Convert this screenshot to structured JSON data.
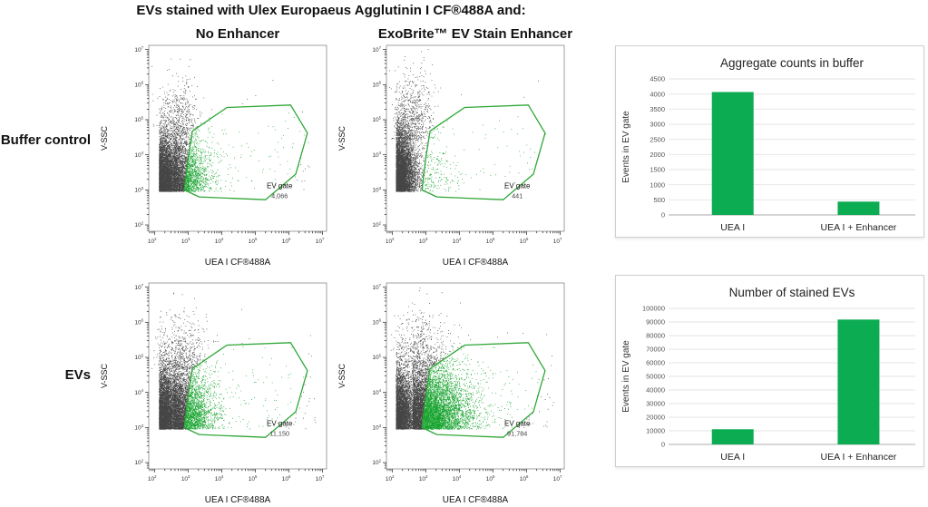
{
  "header": {
    "title": "EVs stained with Ulex Europaeus Agglutinin I CF®488A and:",
    "columns": [
      "No Enhancer",
      "ExoBrite™ EV Stain Enhancer"
    ]
  },
  "row_labels": [
    "Buffer control",
    "EVs"
  ],
  "colors": {
    "scatter_gray": "#454545",
    "scatter_green": "#17a42e",
    "gate_green": "#2fa737",
    "bar_green": "#0cac53",
    "grid_gray": "#e3e3e3",
    "axis_line": "#adadad",
    "panel_border": "#cfcfcf",
    "tick_text": "#555555",
    "label_text": "#222222"
  },
  "flow": {
    "x_label": "UEA I CF®488A",
    "y_label": "V-SSC",
    "tick_exponents": [
      2,
      3,
      4,
      5,
      6,
      7
    ],
    "gate": {
      "label": "EV gate",
      "polygon_log10": [
        [
          2.88,
          3.0
        ],
        [
          3.0,
          3.95
        ],
        [
          3.12,
          4.68
        ],
        [
          4.15,
          5.35
        ],
        [
          6.05,
          5.42
        ],
        [
          6.55,
          4.62
        ],
        [
          6.2,
          3.45
        ],
        [
          5.3,
          2.72
        ],
        [
          3.32,
          2.8
        ]
      ]
    },
    "plots": [
      {
        "id": "buffer-no-enhancer",
        "row": "Buffer control",
        "column": "No Enhancer",
        "gate_count": "4,066",
        "seed": 11,
        "clouds": [
          {
            "n": 5200,
            "x": [
              "half",
              2.12,
              0.3
            ],
            "y": [
              "half",
              2.95,
              0.75
            ]
          },
          {
            "n": 2400,
            "x": [
              "half",
              2.55,
              0.5
            ],
            "y": [
              "half",
              2.95,
              0.8
            ]
          },
          {
            "n": 430,
            "x": [
              "gauss",
              2.7,
              0.3
            ],
            "y": [
              "half",
              4.55,
              0.8
            ]
          },
          {
            "n": 150,
            "x": [
              "uni",
              2.2,
              4.4
            ],
            "y": [
              "half",
              2.95,
              1.3
            ]
          }
        ]
      },
      {
        "id": "buffer-enhancer",
        "row": "Buffer control",
        "column": "ExoBrite™ EV Stain Enhancer",
        "gate_count": "441",
        "seed": 22,
        "clouds": [
          {
            "n": 5600,
            "x": [
              "half",
              2.1,
              0.27
            ],
            "y": [
              "half",
              2.95,
              0.85
            ]
          },
          {
            "n": 270,
            "x": [
              "half",
              2.6,
              0.55
            ],
            "y": [
              "half",
              2.95,
              0.7
            ]
          },
          {
            "n": 650,
            "x": [
              "gauss",
              2.65,
              0.33
            ],
            "y": [
              "half",
              4.45,
              0.95
            ]
          },
          {
            "n": 100,
            "x": [
              "uni",
              2.2,
              4.4
            ],
            "y": [
              "half",
              2.95,
              1.25
            ]
          }
        ]
      },
      {
        "id": "evs-no-enhancer",
        "row": "EVs",
        "column": "No Enhancer",
        "gate_count": "11,150",
        "seed": 33,
        "clouds": [
          {
            "n": 5200,
            "x": [
              "half",
              2.12,
              0.3
            ],
            "y": [
              "half",
              2.95,
              0.8
            ]
          },
          {
            "n": 3600,
            "x": [
              "half",
              2.55,
              0.55
            ],
            "y": [
              "half",
              2.95,
              0.85
            ]
          },
          {
            "n": 470,
            "x": [
              "gauss",
              2.75,
              0.35
            ],
            "y": [
              "half",
              4.65,
              0.8
            ]
          },
          {
            "n": 170,
            "x": [
              "uni",
              2.2,
              4.6
            ],
            "y": [
              "half",
              2.95,
              1.25
            ]
          }
        ]
      },
      {
        "id": "evs-enhancer",
        "row": "EVs",
        "column": "ExoBrite™ EV Stain Enhancer",
        "gate_count": "91,784",
        "seed": 44,
        "clouds": [
          {
            "n": 4600,
            "x": [
              "half",
              2.1,
              0.28
            ],
            "y": [
              "half",
              2.95,
              0.8
            ]
          },
          {
            "n": 7200,
            "x": [
              "half",
              2.6,
              0.8
            ],
            "y": [
              "half",
              2.95,
              0.85
            ]
          },
          {
            "n": 400,
            "x": [
              "gauss",
              2.8,
              0.4
            ],
            "y": [
              "half",
              4.75,
              0.75
            ]
          },
          {
            "n": 180,
            "x": [
              "uni",
              2.2,
              4.6
            ],
            "y": [
              "half",
              2.95,
              1.2
            ]
          }
        ]
      }
    ]
  },
  "chart_data": [
    {
      "type": "scatter",
      "subtype": "flow-cytometry-dot-plot",
      "title": "Buffer control — No Enhancer",
      "xlabel": "UEA I CF®488A",
      "ylabel": "V-SSC",
      "xscale": "log",
      "yscale": "log",
      "xlim": [
        100,
        10000000
      ],
      "ylim": [
        100,
        10000000
      ],
      "gate_label": "EV gate",
      "events_in_gate": 4066
    },
    {
      "type": "scatter",
      "subtype": "flow-cytometry-dot-plot",
      "title": "Buffer control — ExoBrite™ EV Stain Enhancer",
      "xlabel": "UEA I CF®488A",
      "ylabel": "V-SSC",
      "xscale": "log",
      "yscale": "log",
      "xlim": [
        100,
        10000000
      ],
      "ylim": [
        100,
        10000000
      ],
      "gate_label": "EV gate",
      "events_in_gate": 441
    },
    {
      "type": "scatter",
      "subtype": "flow-cytometry-dot-plot",
      "title": "EVs — No Enhancer",
      "xlabel": "UEA I CF®488A",
      "ylabel": "V-SSC",
      "xscale": "log",
      "yscale": "log",
      "xlim": [
        100,
        10000000
      ],
      "ylim": [
        100,
        10000000
      ],
      "gate_label": "EV gate",
      "events_in_gate": 11150
    },
    {
      "type": "scatter",
      "subtype": "flow-cytometry-dot-plot",
      "title": "EVs — ExoBrite™ EV Stain Enhancer",
      "xlabel": "UEA I CF®488A",
      "ylabel": "V-SSC",
      "xscale": "log",
      "yscale": "log",
      "xlim": [
        100,
        10000000
      ],
      "ylim": [
        100,
        10000000
      ],
      "gate_label": "EV gate",
      "events_in_gate": 91784
    },
    {
      "type": "bar",
      "title": "Aggregate counts in buffer",
      "ylabel": "Events in EV gate",
      "xlabel": "",
      "categories": [
        "UEA I",
        "UEA I + Enhancer"
      ],
      "values": [
        4066,
        441
      ],
      "ylim": [
        0,
        4500
      ],
      "ytick_step": 500,
      "grid": true,
      "legend": false
    },
    {
      "type": "bar",
      "title": "Number of stained EVs",
      "ylabel": "Events in EV gate",
      "xlabel": "",
      "categories": [
        "UEA I",
        "UEA I + Enhancer"
      ],
      "values": [
        11150,
        91784
      ],
      "ylim": [
        0,
        100000
      ],
      "ytick_step": 10000,
      "grid": true,
      "legend": false
    }
  ]
}
